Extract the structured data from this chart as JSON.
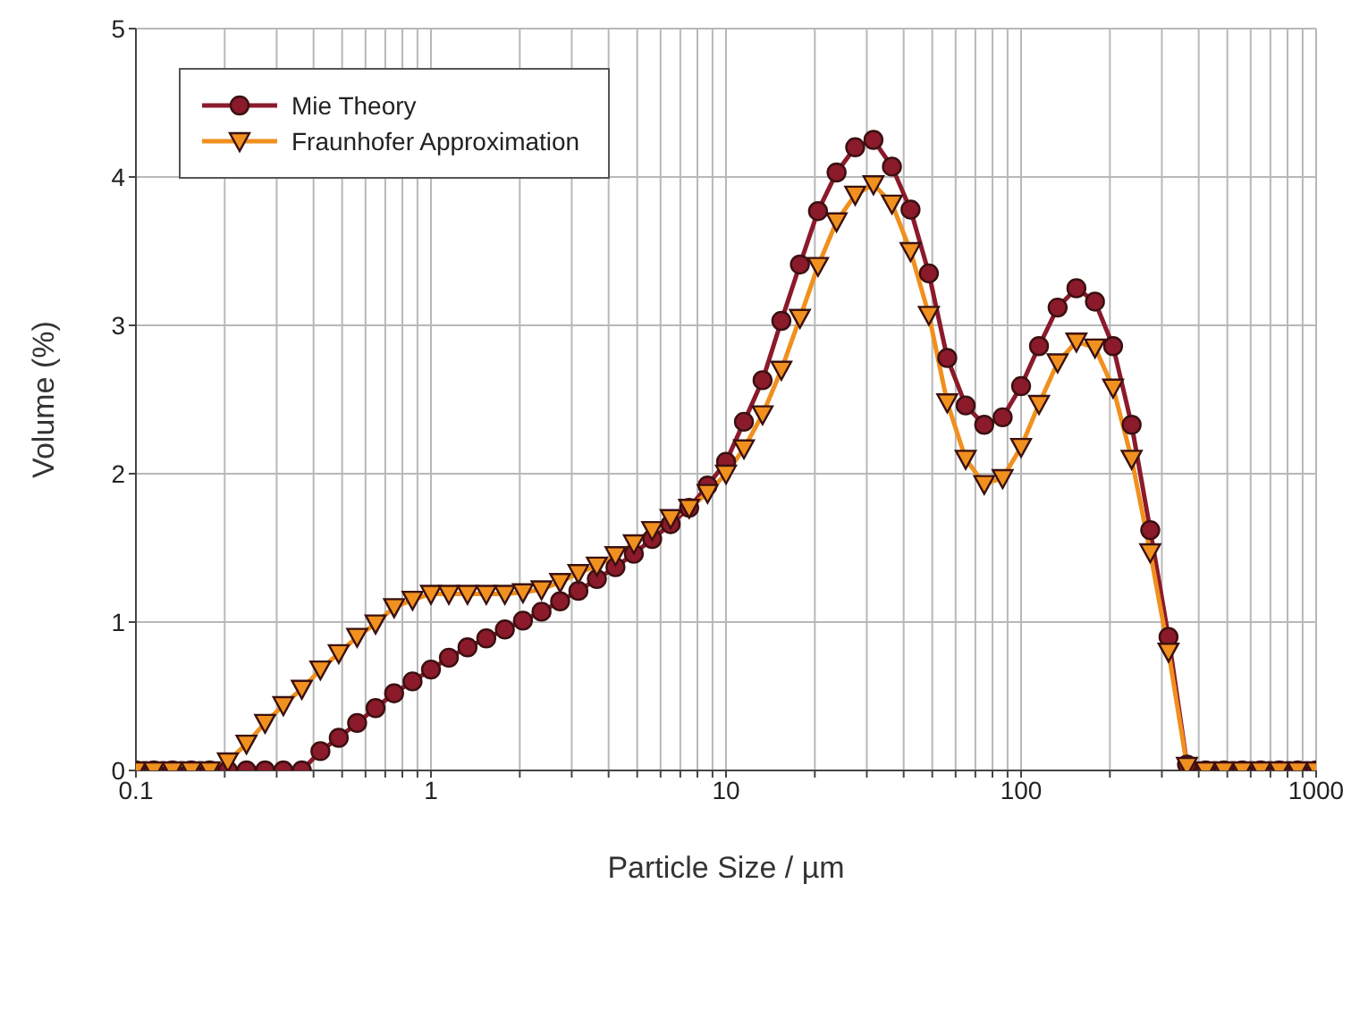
{
  "chart_data": {
    "type": "line",
    "xlabel": "Particle Size / µm",
    "ylabel": "Volume (%)",
    "log": "x",
    "grid": true,
    "legend": "top left",
    "line_style": "solid",
    "x": [
      0.1,
      0.115,
      0.133,
      0.154,
      0.178,
      0.205,
      0.237,
      0.274,
      0.316,
      0.365,
      0.422,
      0.487,
      0.562,
      0.649,
      0.75,
      0.866,
      1,
      1.15,
      1.33,
      1.54,
      1.78,
      2.05,
      2.37,
      2.74,
      3.16,
      3.65,
      4.22,
      4.87,
      5.62,
      6.49,
      7.5,
      8.66,
      10,
      11.5,
      13.3,
      15.4,
      17.8,
      20.5,
      23.7,
      27.4,
      31.6,
      36.5,
      42.2,
      48.7,
      56.2,
      64.9,
      75,
      86.6,
      100,
      115,
      133,
      154,
      178,
      205,
      237,
      274,
      316,
      365,
      422,
      487,
      562,
      649,
      750,
      866,
      1000
    ],
    "xlim": [
      0.1,
      1000
    ],
    "xticks": [
      0.1,
      {
        "value": 0.2,
        "label": null
      },
      {
        "value": 0.3,
        "label": null
      },
      {
        "value": 0.4,
        "label": null
      },
      {
        "value": 0.5,
        "label": null
      },
      {
        "value": 0.6,
        "label": null
      },
      {
        "value": 0.7,
        "label": null
      },
      {
        "value": 0.8,
        "label": null
      },
      {
        "value": 0.9,
        "label": null
      },
      1,
      {
        "value": 2,
        "label": null
      },
      {
        "value": 3,
        "label": null
      },
      {
        "value": 4,
        "label": null
      },
      {
        "value": 5,
        "label": null
      },
      {
        "value": 6,
        "label": null
      },
      {
        "value": 7,
        "label": null
      },
      {
        "value": 8,
        "label": null
      },
      {
        "value": 9,
        "label": null
      },
      10,
      {
        "value": 20,
        "label": null
      },
      {
        "value": 30,
        "label": null
      },
      {
        "value": 40,
        "label": null
      },
      {
        "value": 50,
        "label": null
      },
      {
        "value": 60,
        "label": null
      },
      {
        "value": 70,
        "label": null
      },
      {
        "value": 80,
        "label": null
      },
      {
        "value": 90,
        "label": null
      },
      100,
      {
        "value": 200,
        "label": null
      },
      {
        "value": 300,
        "label": null
      },
      {
        "value": 400,
        "label": null
      },
      {
        "value": 500,
        "label": null
      },
      {
        "value": 600,
        "label": null
      },
      {
        "value": 700,
        "label": null
      },
      {
        "value": 800,
        "label": null
      },
      {
        "value": 900,
        "label": null
      },
      1000
    ],
    "ylim": [
      0,
      5
    ],
    "yticks": [
      0,
      1,
      2,
      3,
      4,
      5
    ],
    "series": [
      {
        "name": "Mie Theory",
        "color": "#8b1a2b",
        "marker": "circle",
        "values": [
          0,
          0,
          0,
          0,
          0,
          0,
          0,
          0,
          0,
          0,
          0.13,
          0.22,
          0.32,
          0.42,
          0.52,
          0.6,
          0.68,
          0.76,
          0.83,
          0.89,
          0.95,
          1.01,
          1.07,
          1.14,
          1.21,
          1.29,
          1.37,
          1.46,
          1.56,
          1.66,
          1.77,
          1.92,
          2.08,
          2.35,
          2.63,
          3.03,
          3.41,
          3.77,
          4.03,
          4.2,
          4.25,
          4.07,
          3.78,
          3.35,
          2.78,
          2.46,
          2.33,
          2.38,
          2.59,
          2.86,
          3.12,
          3.25,
          3.16,
          2.86,
          2.33,
          1.62,
          0.9,
          0.04,
          0,
          0,
          0,
          0,
          0,
          0,
          0
        ]
      },
      {
        "name": "Fraunhofer Approximation",
        "color": "#f0901e",
        "marker": "triangle",
        "values": [
          0,
          0,
          0,
          0,
          0,
          0.06,
          0.18,
          0.32,
          0.44,
          0.55,
          0.68,
          0.79,
          0.9,
          0.99,
          1.1,
          1.15,
          1.19,
          1.19,
          1.19,
          1.19,
          1.19,
          1.2,
          1.22,
          1.27,
          1.33,
          1.38,
          1.45,
          1.53,
          1.62,
          1.7,
          1.77,
          1.87,
          2.0,
          2.17,
          2.4,
          2.7,
          3.05,
          3.4,
          3.7,
          3.88,
          3.95,
          3.82,
          3.5,
          3.07,
          2.48,
          2.1,
          1.93,
          1.97,
          2.18,
          2.47,
          2.75,
          2.89,
          2.85,
          2.58,
          2.1,
          1.47,
          0.8,
          0.03,
          0,
          0,
          0,
          0,
          0,
          0,
          0
        ]
      }
    ]
  }
}
